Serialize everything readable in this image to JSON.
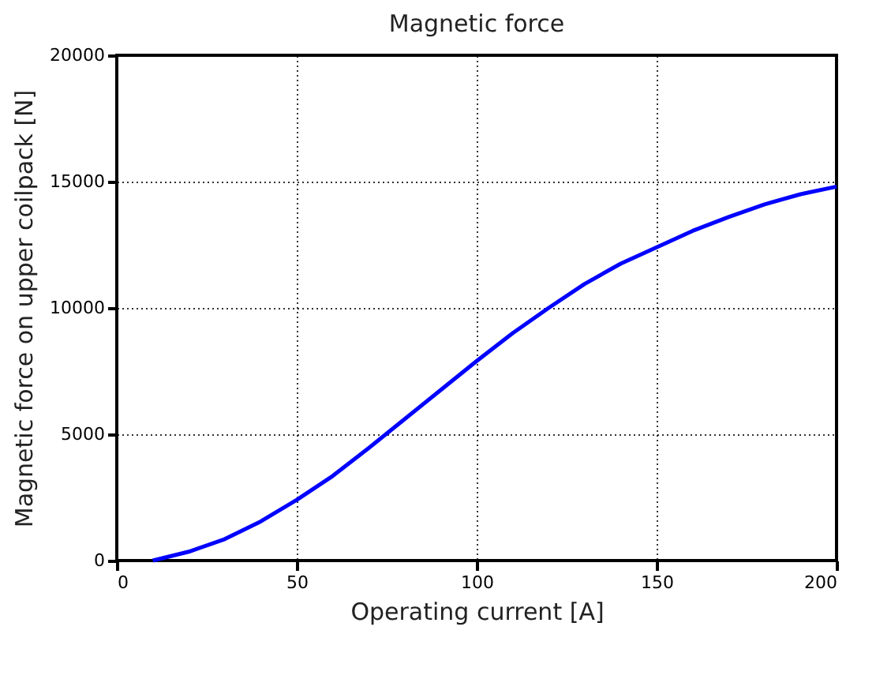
{
  "chart_data": {
    "type": "line",
    "title": "Magnetic force",
    "xlabel": "Operating current [A]",
    "ylabel": "Magnetic force on upper coilpack [N]",
    "x": [
      10,
      20,
      30,
      40,
      50,
      60,
      70,
      80,
      90,
      100,
      110,
      120,
      130,
      140,
      150,
      160,
      170,
      180,
      190,
      200
    ],
    "series": [
      {
        "color": "#0000ff",
        "values": [
          0,
          350,
          850,
          1550,
          2400,
          3350,
          4450,
          5600,
          6750,
          7900,
          9000,
          10000,
          10950,
          11750,
          12400,
          13050,
          13600,
          14100,
          14500,
          14800
        ]
      }
    ],
    "xlim": [
      0,
      200
    ],
    "xticks": [
      0,
      50,
      100,
      150,
      200
    ],
    "ylim": [
      0,
      20000
    ],
    "yticks": [
      0,
      5000,
      10000,
      15000,
      20000
    ],
    "grid": true,
    "line_style": "solid",
    "marker": "none"
  }
}
